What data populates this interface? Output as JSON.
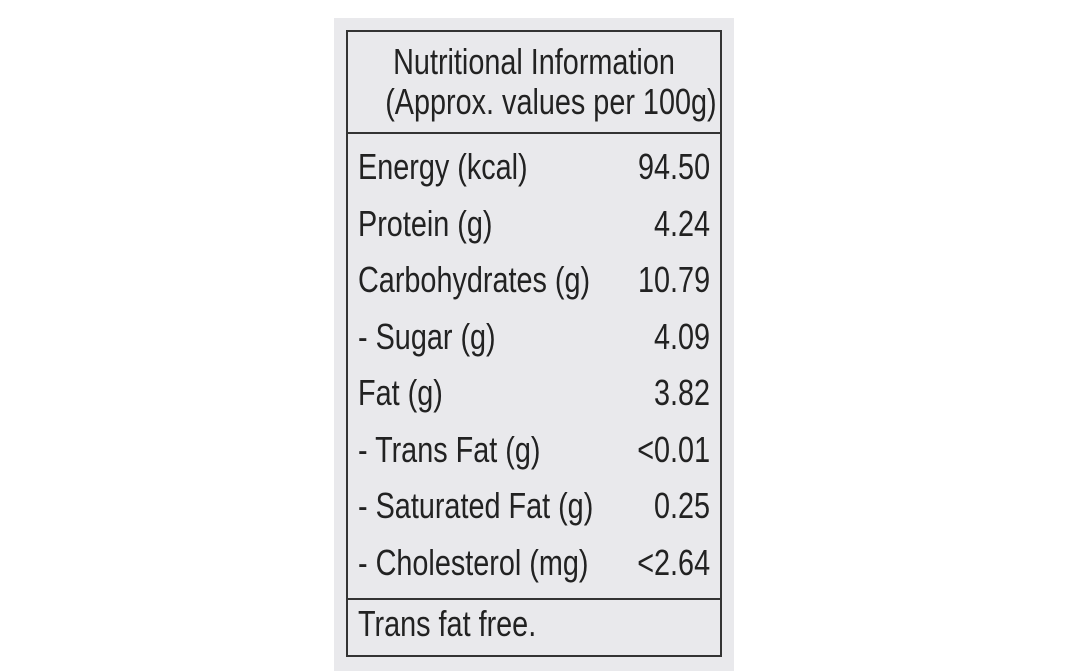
{
  "header": {
    "title": "Nutritional Information",
    "subtitle": "(Approx. values per 100g)"
  },
  "table": {
    "rows": [
      [
        "Energy (kcal)",
        "94.50"
      ],
      [
        "Protein (g)",
        "4.24"
      ],
      [
        "Carbohydrates (g)",
        "10.79"
      ],
      [
        "- Sugar (g)",
        "4.09"
      ],
      [
        "Fat (g)",
        "3.82"
      ],
      [
        "- Trans Fat (g)",
        "<0.01"
      ],
      [
        "- Saturated Fat (g)",
        "0.25"
      ],
      [
        "- Cholesterol (mg)",
        "<2.64"
      ]
    ]
  },
  "footer": "Trans fat free."
}
